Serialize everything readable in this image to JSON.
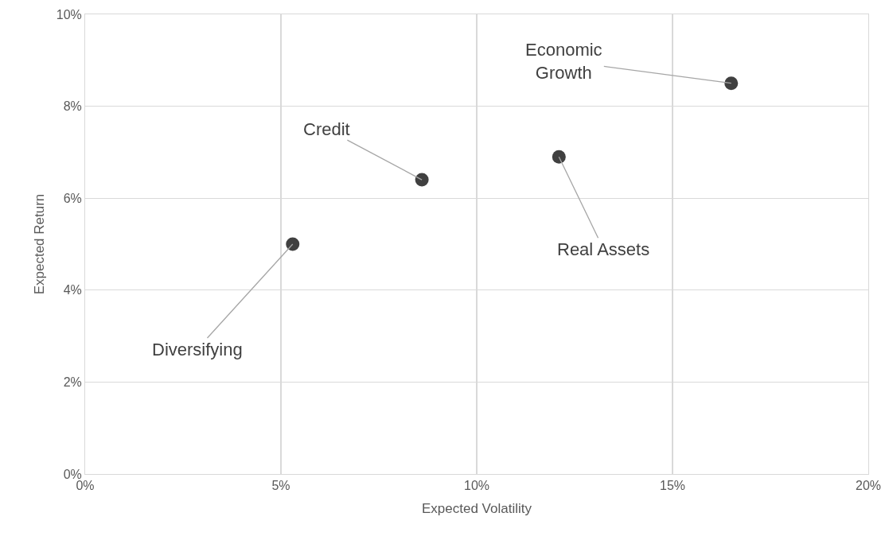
{
  "chart_data": {
    "type": "scatter",
    "xlabel": "Expected Volatility",
    "ylabel": "Expected Return",
    "x": [
      5.3,
      8.6,
      12.1,
      16.5
    ],
    "values": [
      5.0,
      6.4,
      6.9,
      8.5
    ],
    "color": "#404040",
    "marker": "circle",
    "grid": true,
    "xlim": [
      0,
      20
    ],
    "xticks": [
      {
        "value": 0,
        "label": "0%"
      },
      {
        "value": 5,
        "label": "5%"
      },
      {
        "value": 10,
        "label": "10%"
      },
      {
        "value": 15,
        "label": "15%"
      },
      {
        "value": 20,
        "label": "20%"
      }
    ],
    "ylim": [
      0,
      10
    ],
    "yticks": [
      {
        "value": 0,
        "label": "0%"
      },
      {
        "value": 2,
        "label": "2%"
      },
      {
        "value": 4,
        "label": "4%"
      },
      {
        "value": 6,
        "label": "6%"
      },
      {
        "value": 8,
        "label": "8%"
      },
      {
        "value": 10,
        "label": "10%"
      }
    ],
    "annotations": [
      {
        "text": "Diversifying",
        "x": 5.3,
        "y": 5.0
      },
      {
        "text": "Credit",
        "x": 8.6,
        "y": 6.4
      },
      {
        "text": "Real Assets",
        "x": 12.1,
        "y": 6.9
      },
      {
        "text": "Economic\nGrowth",
        "x": 16.5,
        "y": 8.5
      }
    ]
  }
}
